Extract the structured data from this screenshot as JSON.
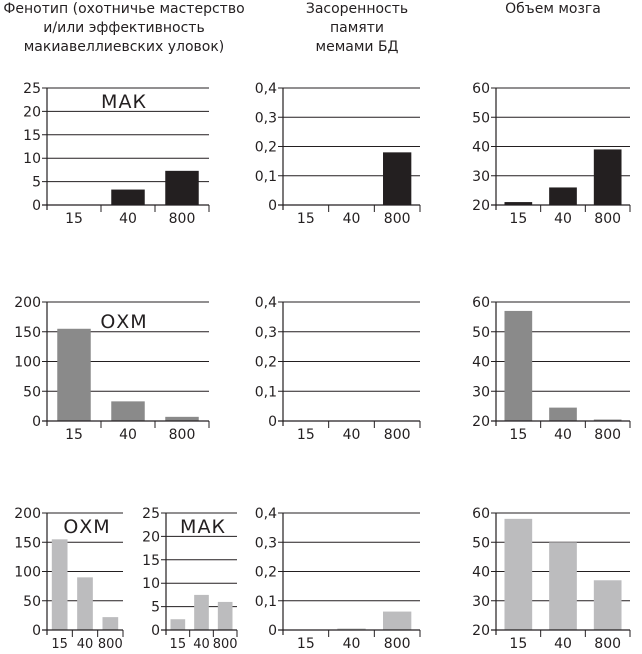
{
  "headers": {
    "col1": [
      "Фенотип (охотничье мастерство",
      "и/или эффективность",
      "макиавеллиевских уловок)"
    ],
    "col2": [
      "Засоренность",
      "памяти",
      "мемами БД"
    ],
    "col3": [
      "Объем мозга"
    ]
  },
  "colors": {
    "black": "#231f20",
    "dark_gray": "#8a8a8a",
    "light_gray": "#bcbcbe",
    "grid": "#231f20"
  },
  "chart_data": [
    {
      "id": "r1c1",
      "type": "bar",
      "row": 1,
      "column": "phenotype",
      "title": "МАК",
      "categories": [
        "15",
        "40",
        "800"
      ],
      "values": [
        0,
        3.3,
        7.3
      ],
      "ylim": [
        0,
        25
      ],
      "yticks": [
        "0",
        "5",
        "10",
        "15",
        "20",
        "25"
      ],
      "color": "black"
    },
    {
      "id": "r1c2",
      "type": "bar",
      "row": 1,
      "column": "meme_clutter",
      "title": "",
      "categories": [
        "15",
        "40",
        "800"
      ],
      "values": [
        0,
        0,
        0.18
      ],
      "ylim": [
        0,
        0.4
      ],
      "yticks": [
        "0",
        "0,1",
        "0,2",
        "0,3",
        "0,4"
      ],
      "color": "black"
    },
    {
      "id": "r1c3",
      "type": "bar",
      "row": 1,
      "column": "brain_volume",
      "title": "",
      "categories": [
        "15",
        "40",
        "800"
      ],
      "values": [
        21,
        26,
        39
      ],
      "ylim": [
        20,
        60
      ],
      "yticks": [
        "20",
        "30",
        "40",
        "50",
        "60"
      ],
      "color": "black"
    },
    {
      "id": "r2c1",
      "type": "bar",
      "row": 2,
      "column": "phenotype",
      "title": "ОХМ",
      "categories": [
        "15",
        "40",
        "800"
      ],
      "values": [
        155,
        33,
        7
      ],
      "ylim": [
        0,
        200
      ],
      "yticks": [
        "0",
        "50",
        "100",
        "150",
        "200"
      ],
      "color": "dark_gray"
    },
    {
      "id": "r2c2",
      "type": "bar",
      "row": 2,
      "column": "meme_clutter",
      "title": "",
      "categories": [
        "15",
        "40",
        "800"
      ],
      "values": [
        0,
        0,
        0
      ],
      "ylim": [
        0,
        0.4
      ],
      "yticks": [
        "0",
        "0,1",
        "0,2",
        "0,3",
        "0,4"
      ],
      "color": "dark_gray"
    },
    {
      "id": "r2c3",
      "type": "bar",
      "row": 2,
      "column": "brain_volume",
      "title": "",
      "categories": [
        "15",
        "40",
        "800"
      ],
      "values": [
        57,
        24.5,
        20.5
      ],
      "ylim": [
        20,
        60
      ],
      "yticks": [
        "20",
        "30",
        "40",
        "50",
        "60"
      ],
      "color": "dark_gray"
    },
    {
      "id": "r3c1a",
      "type": "bar",
      "row": 3,
      "column": "phenotype",
      "title": "ОХМ",
      "categories": [
        "15",
        "40",
        "800"
      ],
      "values": [
        155,
        90,
        22
      ],
      "ylim": [
        0,
        200
      ],
      "yticks": [
        "0",
        "50",
        "100",
        "150",
        "200"
      ],
      "color": "light_gray"
    },
    {
      "id": "r3c1b",
      "type": "bar",
      "row": 3,
      "column": "phenotype",
      "title": "МАК",
      "categories": [
        "15",
        "40",
        "800"
      ],
      "values": [
        2.3,
        7.5,
        6
      ],
      "ylim": [
        0,
        25
      ],
      "yticks": [
        "0",
        "5",
        "10",
        "15",
        "20",
        "25"
      ],
      "color": "light_gray"
    },
    {
      "id": "r3c2",
      "type": "bar",
      "row": 3,
      "column": "meme_clutter",
      "title": "",
      "categories": [
        "15",
        "40",
        "800"
      ],
      "values": [
        0,
        0.005,
        0.063
      ],
      "ylim": [
        0,
        0.4
      ],
      "yticks": [
        "0",
        "0,1",
        "0,2",
        "0,3",
        "0,4"
      ],
      "color": "light_gray"
    },
    {
      "id": "r3c3",
      "type": "bar",
      "row": 3,
      "column": "brain_volume",
      "title": "",
      "categories": [
        "15",
        "40",
        "800"
      ],
      "values": [
        58,
        50,
        37
      ],
      "ylim": [
        20,
        60
      ],
      "yticks": [
        "20",
        "30",
        "40",
        "50",
        "60"
      ],
      "color": "light_gray"
    }
  ]
}
